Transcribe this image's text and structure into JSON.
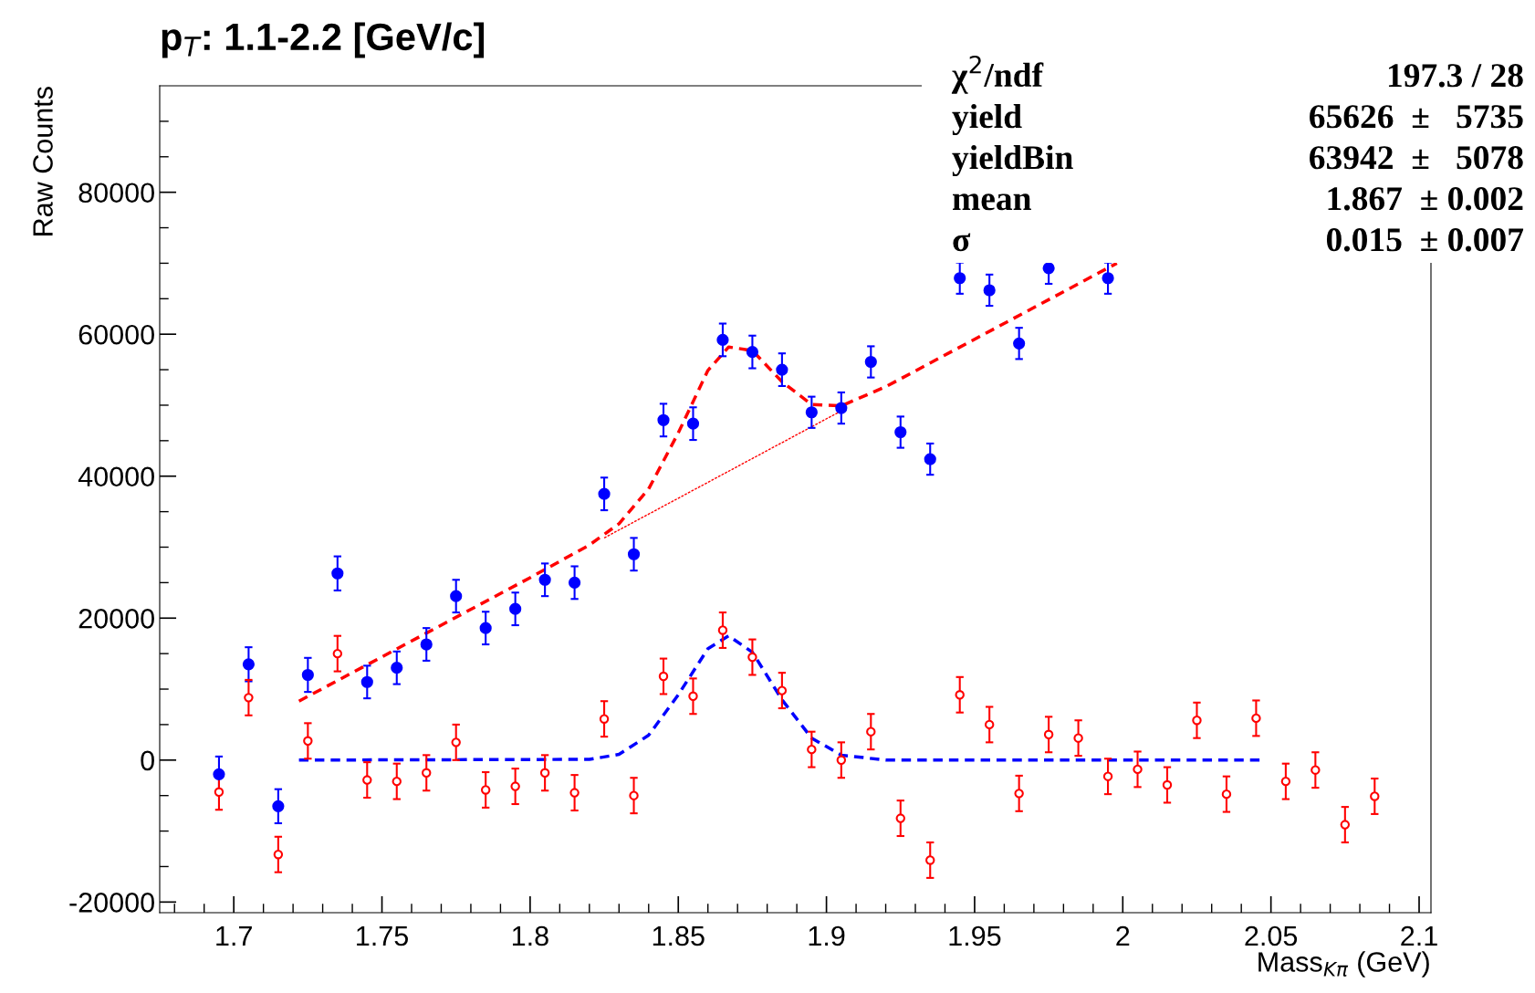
{
  "chart_data": {
    "type": "scatter",
    "title": "p$_{T}$: 1.1-2.2 [GeV/c]",
    "xlabel": "Mass$_{Kπ}$ (GeV)",
    "ylabel": "Raw Counts",
    "xlim": [
      1.675,
      2.104
    ],
    "xticks": [
      {
        "value": 1.68,
        "label": null
      },
      {
        "value": 1.69,
        "label": null
      },
      1.7,
      {
        "value": 1.71,
        "label": null
      },
      {
        "value": 1.72,
        "label": null
      },
      {
        "value": 1.73,
        "label": null
      },
      {
        "value": 1.74,
        "label": null
      },
      1.75,
      {
        "value": 1.76,
        "label": null
      },
      {
        "value": 1.77,
        "label": null
      },
      {
        "value": 1.78,
        "label": null
      },
      {
        "value": 1.79,
        "label": null
      },
      1.8,
      {
        "value": 1.81,
        "label": null
      },
      {
        "value": 1.82,
        "label": null
      },
      {
        "value": 1.83,
        "label": null
      },
      {
        "value": 1.84,
        "label": null
      },
      1.85,
      {
        "value": 1.86,
        "label": null
      },
      {
        "value": 1.87,
        "label": null
      },
      {
        "value": 1.88,
        "label": null
      },
      {
        "value": 1.89,
        "label": null
      },
      1.9,
      {
        "value": 1.91,
        "label": null
      },
      {
        "value": 1.92,
        "label": null
      },
      {
        "value": 1.93,
        "label": null
      },
      {
        "value": 1.94,
        "label": null
      },
      1.95,
      {
        "value": 1.96,
        "label": null
      },
      {
        "value": 1.97,
        "label": null
      },
      {
        "value": 1.98,
        "label": null
      },
      {
        "value": 1.99,
        "label": null
      },
      2,
      {
        "value": 2.01,
        "label": null
      },
      {
        "value": 2.02,
        "label": null
      },
      {
        "value": 2.03,
        "label": null
      },
      {
        "value": 2.04,
        "label": null
      },
      2.05,
      {
        "value": 2.06,
        "label": null
      },
      {
        "value": 2.07,
        "label": null
      },
      {
        "value": 2.08,
        "label": null
      },
      {
        "value": 2.09,
        "label": null
      },
      2.1
    ],
    "ylim": [
      -21500,
      95000
    ],
    "yticks": [
      -20000,
      {
        "value": -15000,
        "label": null
      },
      {
        "value": -10000,
        "label": null
      },
      {
        "value": -5000,
        "label": null
      },
      0,
      {
        "value": 5000,
        "label": null
      },
      {
        "value": 10000,
        "label": null
      },
      {
        "value": 15000,
        "label": null
      },
      20000,
      {
        "value": 25000,
        "label": null
      },
      {
        "value": 30000,
        "label": null
      },
      {
        "value": 35000,
        "label": null
      },
      40000,
      {
        "value": 45000,
        "label": null
      },
      {
        "value": 50000,
        "label": null
      },
      {
        "value": 55000,
        "label": null
      },
      60000,
      {
        "value": 65000,
        "label": null
      },
      {
        "value": 70000,
        "label": null
      },
      {
        "value": 75000,
        "label": null
      },
      80000,
      {
        "value": 85000,
        "label": null
      },
      {
        "value": 90000,
        "label": null
      }
    ],
    "grid": false,
    "annotations": [
      "χ$^{2}$/ndf",
      "197.3 / 28",
      "yield",
      "65626  ±   5735",
      "yieldBin",
      "63942  ±   5078",
      "mean",
      "1.867  ± 0.002",
      "σ",
      "0.015  ± 0.007"
    ],
    "series": [
      {
        "color": "#0000ff",
        "marker": "circle",
        "x": [
          1.695,
          1.705,
          1.715,
          1.725,
          1.735,
          1.745,
          1.755,
          1.765,
          1.775,
          1.785,
          1.795,
          1.805,
          1.815,
          1.825,
          1.835,
          1.845,
          1.855,
          1.865,
          1.875,
          1.885,
          1.895,
          1.905,
          1.915,
          1.925,
          1.935,
          1.945,
          1.955,
          1.965,
          1.975,
          1.985,
          1.995
        ],
        "values": [
          -2000,
          13500,
          -6500,
          12000,
          26300,
          11000,
          13000,
          16300,
          23100,
          18600,
          21300,
          25400,
          25000,
          37500,
          29000,
          47900,
          47400,
          59200,
          57500,
          55000,
          49000,
          49600,
          56100,
          46200,
          42400,
          67900,
          66200,
          58700,
          69300,
          null,
          67900
        ],
        "errors": [
          2500,
          2400,
          2400,
          2400,
          2400,
          2300,
          2300,
          2300,
          2300,
          2300,
          2300,
          2300,
          2300,
          2300,
          2300,
          2300,
          2300,
          2300,
          2300,
          2300,
          2200,
          2200,
          2200,
          2200,
          2200,
          2200,
          2200,
          2200,
          2200,
          null,
          2200
        ]
      },
      {
        "color": "#ff0000",
        "marker": "open circle",
        "x": [
          1.695,
          1.705,
          1.715,
          1.725,
          1.735,
          1.745,
          1.755,
          1.765,
          1.775,
          1.785,
          1.795,
          1.805,
          1.815,
          1.825,
          1.835,
          1.845,
          1.855,
          1.865,
          1.875,
          1.885,
          1.895,
          1.905,
          1.915,
          1.925,
          1.935,
          1.945,
          1.955,
          1.965,
          1.975,
          1.985,
          1.995,
          2.005,
          2.015,
          2.025,
          2.035,
          2.045,
          2.055,
          2.065,
          2.075,
          2.085
        ],
        "values": [
          -4500,
          8800,
          -13300,
          2700,
          15000,
          -2800,
          -3000,
          -1800,
          2500,
          -4200,
          -3700,
          -1800,
          -4600,
          5800,
          -5000,
          11800,
          9000,
          18300,
          14500,
          9800,
          1500,
          0,
          4000,
          -8200,
          -14100,
          9200,
          5000,
          -4700,
          3600,
          3100,
          -2300,
          -1300,
          -3500,
          5600,
          -4800,
          5900,
          -3000,
          -1400,
          -9100,
          -5100
        ],
        "errors": [
          2500,
          2500,
          2500,
          2500,
          2500,
          2500,
          2500,
          2500,
          2500,
          2500,
          2500,
          2500,
          2500,
          2500,
          2500,
          2500,
          2500,
          2500,
          2500,
          2500,
          2500,
          2500,
          2500,
          2500,
          2500,
          2500,
          2500,
          2500,
          2500,
          2500,
          2500,
          2500,
          2500,
          2500,
          2500,
          2500,
          2500,
          2500,
          2500,
          2500
        ]
      },
      {
        "type": "line",
        "color": "#ff0000",
        "line_style": "dashed",
        "x": [
          1.722,
          1.8,
          1.82,
          1.83,
          1.84,
          1.85,
          1.86,
          1.867,
          1.875,
          1.885,
          1.895,
          1.905,
          1.92,
          1.998
        ],
        "values": [
          8300,
          25700,
          30300,
          33300,
          38200,
          46100,
          54900,
          58200,
          57700,
          53300,
          50100,
          49900,
          52600,
          70000
        ]
      },
      {
        "type": "line",
        "color": "#ff0000",
        "line_style": "dotted",
        "x": [
          1.825,
          1.905
        ],
        "values": [
          31300,
          49200
        ]
      },
      {
        "type": "line",
        "color": "#0000ff",
        "line_style": "dashed",
        "x": [
          1.722,
          1.82,
          1.83,
          1.84,
          1.85,
          1.86,
          1.867,
          1.875,
          1.885,
          1.895,
          1.905,
          1.92,
          2.047
        ],
        "values": [
          0,
          100,
          800,
          3500,
          9200,
          15700,
          17500,
          15200,
          8500,
          3100,
          700,
          0,
          0
        ]
      }
    ]
  }
}
